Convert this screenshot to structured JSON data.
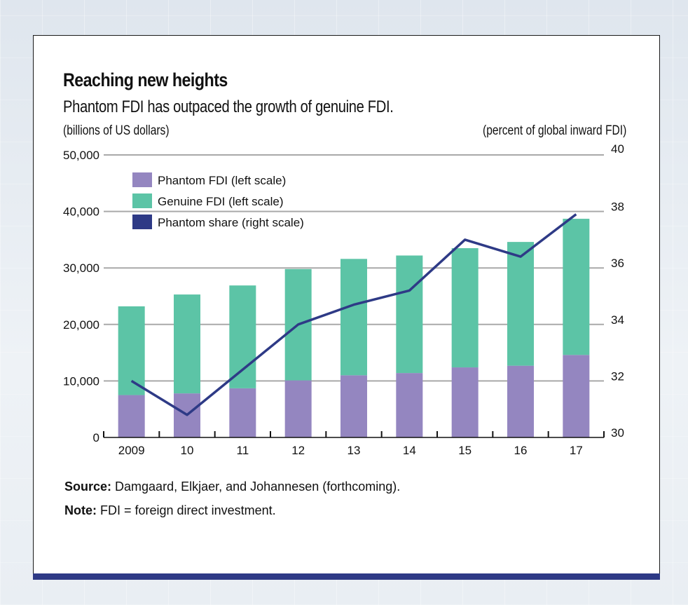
{
  "chart_data": {
    "type": "bar",
    "title": "Reaching new heights",
    "subtitle": "Phantom FDI has outpaced the growth of genuine FDI.",
    "ylabel_left": "(billions of US dollars)",
    "ylabel_right": "(percent of global inward FDI)",
    "categories": [
      "2009",
      "10",
      "11",
      "12",
      "13",
      "14",
      "15",
      "16",
      "17"
    ],
    "stacked": true,
    "ylim_left": [
      0,
      50000
    ],
    "yticks_left": [
      "0",
      "10,000",
      "20,000",
      "30,000",
      "40,000",
      "50,000"
    ],
    "ylim_right": [
      30,
      40
    ],
    "yticks_right": [
      "30",
      "32",
      "34",
      "36",
      "38",
      "40"
    ],
    "series": [
      {
        "name": "Phantom FDI (left scale)",
        "type": "bar",
        "axis": "left",
        "color": "#9486c0",
        "values": [
          7500,
          7800,
          8700,
          10100,
          11000,
          11400,
          12400,
          12700,
          14600
        ]
      },
      {
        "name": "Genuine FDI (left scale)",
        "type": "bar",
        "axis": "left",
        "color": "#5cc4a6",
        "values": [
          15700,
          17500,
          18200,
          19700,
          20600,
          20800,
          21100,
          21900,
          24100
        ]
      },
      {
        "name": "Phantom share (right scale)",
        "type": "line",
        "axis": "right",
        "color": "#2e3a86",
        "values": [
          32.0,
          30.8,
          32.4,
          34.0,
          34.7,
          35.2,
          37.0,
          36.4,
          37.9
        ]
      }
    ],
    "grid": true,
    "legend_position": "top-left"
  },
  "notes": {
    "source_label": "Source:",
    "source_text": " Damgaard, Elkjaer, and Johannesen (forthcoming).",
    "note_label": "Note:",
    "note_text": " FDI = foreign direct investment."
  }
}
